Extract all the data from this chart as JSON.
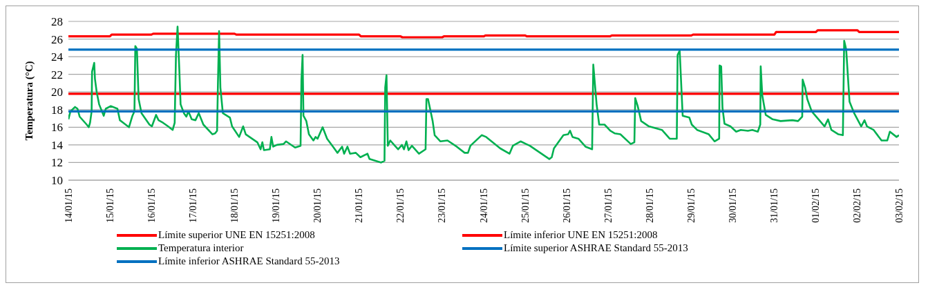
{
  "chart_data": {
    "type": "line",
    "ylabel": "Temperatura (°C)",
    "ylim": [
      10,
      28
    ],
    "yticks": [
      10,
      12,
      14,
      16,
      18,
      20,
      22,
      24,
      26,
      28
    ],
    "xlim": [
      "--01-14",
      "--02-03"
    ],
    "xticks": [
      {
        "value": "--01-14",
        "label": "14/01/15"
      },
      {
        "value": "--01-15",
        "label": "15/01/15"
      },
      {
        "value": "--01-16",
        "label": "16/01/15"
      },
      {
        "value": "--01-17",
        "label": "17/01/15"
      },
      {
        "value": "--01-18",
        "label": "18/01/15"
      },
      {
        "value": "--01-19",
        "label": "19/01/15"
      },
      {
        "value": "--01-20",
        "label": "20/01/15"
      },
      {
        "value": "--01-21",
        "label": "21/01/15"
      },
      {
        "value": "--01-22",
        "label": "22/01/15"
      },
      {
        "value": "--01-23",
        "label": "23/01/15"
      },
      {
        "value": "--01-24",
        "label": "24/01/15"
      },
      {
        "value": "--01-25",
        "label": "25/01/15"
      },
      {
        "value": "--01-26",
        "label": "26/01/15"
      },
      {
        "value": "--01-27",
        "label": "27/01/15"
      },
      {
        "value": "--01-28",
        "label": "28/01/15"
      },
      {
        "value": "--01-29",
        "label": "29/01/15"
      },
      {
        "value": "--01-30",
        "label": "30/01/15"
      },
      {
        "value": "--01-31",
        "label": "31/01/15"
      },
      {
        "value": "--02-01",
        "label": "01/02/15"
      },
      {
        "value": "--02-02",
        "label": "02/02/15"
      },
      {
        "value": "--02-03",
        "label": "03/02/15"
      }
    ],
    "grid": "y",
    "legend": "bottom",
    "marker": "none",
    "line_style": "solid",
    "series": [
      {
        "name": "Límite superior UNE EN 15251:2008",
        "color": "#ff0000",
        "x": [
          "--01-14",
          "--01-15T00:00",
          "--01-15T01:00",
          "--01-16T00:00",
          "--01-16T01:00",
          "--01-18T00:00",
          "--01-18T01:00",
          "--01-21T00:00",
          "--01-21T01:00",
          "--01-22T00:00",
          "--01-22T01:00",
          "--01-23T00:00",
          "--01-23T01:00",
          "--01-24T00:00",
          "--01-24T01:00",
          "--01-25T00:00",
          "--01-25T01:00",
          "--01-27T01:00",
          "--01-27T02:00",
          "--01-29T00:00",
          "--01-29T01:00",
          "--01-31T00:00",
          "--01-31T01:00",
          "--02-01T00:00",
          "--02-01T01:00",
          "--02-02T00:00",
          "--02-02T01:00",
          "--02-03T00:00"
        ],
        "values": [
          26.3,
          26.3,
          26.5,
          26.5,
          26.6,
          26.6,
          26.5,
          26.5,
          26.3,
          26.3,
          26.2,
          26.2,
          26.3,
          26.3,
          26.4,
          26.4,
          26.3,
          26.3,
          26.4,
          26.4,
          26.5,
          26.5,
          26.8,
          26.8,
          27.0,
          27.0,
          26.8,
          26.8
        ]
      },
      {
        "name": "Límite inferior UNE EN 15251:2008",
        "color": "#ff0000",
        "x": [
          "--01-14",
          "--02-03"
        ],
        "values": [
          19.8,
          19.8
        ]
      },
      {
        "name": "Temperatura interior",
        "color": "#00b050",
        "x": [
          "--01-14T00:00",
          "--01-14T01:10",
          "--01-14T03:50",
          "--01-14T05:15",
          "--01-14T06:30",
          "--01-14T10:35",
          "--01-14T11:45",
          "--01-14T12:30",
          "--01-14T13:25",
          "--01-14T13:40",
          "--01-14T14:55",
          "--01-14T15:20",
          "--01-14T16:20",
          "--01-14T17:45",
          "--01-14T20:25",
          "--01-14T21:35",
          "--01-15T00:30",
          "--01-15T04:20",
          "--01-15T05:45",
          "--01-15T08:25",
          "--01-15T11:00",
          "--01-15T13:00",
          "--01-15T14:10",
          "--01-15T14:40",
          "--01-15T15:35",
          "--01-15T16:35",
          "--01-15T18:15",
          "--01-15T22:50",
          "--01-16T00:15",
          "--01-16T02:40",
          "--01-16T04:05",
          "--01-16T06:45",
          "--01-16T09:35",
          "--01-16T12:15",
          "--01-16T13:25",
          "--01-16T14:10",
          "--01-16T15:05",
          "--01-16T16:05",
          "--01-16T16:50",
          "--01-16T18:45",
          "--01-16T20:10",
          "--01-16T21:20",
          "--01-16T23:15",
          "--01-17T01:25",
          "--01-17T03:20",
          "--01-17T06:00",
          "--01-17T11:15",
          "--01-17T12:45",
          "--01-17T13:55",
          "--01-17T14:25",
          "--01-17T15:05",
          "--01-17T15:50",
          "--01-17T17:15",
          "--01-17T21:20",
          "--01-17T22:35",
          "--01-18T02:40",
          "--01-18T05:00",
          "--01-18T06:30",
          "--01-18T13:10",
          "--01-18T15:05",
          "--01-18T16:05",
          "--01-18T17:00",
          "--01-18T20:25",
          "--01-18T21:20",
          "--01-18T22:20",
          "--01-19T00:30",
          "--01-19T04:20",
          "--01-19T05:45",
          "--01-19T11:00",
          "--01-19T14:10",
          "--01-19T14:40",
          "--01-19T15:20",
          "--01-19T15:50",
          "--01-19T17:30",
          "--01-19T19:00",
          "--01-19T21:35",
          "--01-19T22:50",
          "--01-20T00:00",
          "--01-20T02:55",
          "--01-20T05:30",
          "--01-20T08:55",
          "--01-20T11:30",
          "--01-20T14:10",
          "--01-20T15:20",
          "--01-20T17:15",
          "--01-20T18:45",
          "--01-20T22:05",
          "--01-21T00:45",
          "--01-21T04:50",
          "--01-21T06:00",
          "--01-21T12:45",
          "--01-21T14:40",
          "--01-21T15:05",
          "--01-21T15:50",
          "--01-21T16:35",
          "--01-21T18:00",
          "--01-21T20:40",
          "--01-21T22:35",
          "--01-22T00:45",
          "--01-22T01:55",
          "--01-22T03:20",
          "--01-22T04:35",
          "--01-22T06:30",
          "--01-22T10:35",
          "--01-22T14:25",
          "--01-22T14:55",
          "--01-22T15:50",
          "--01-22T18:30",
          "--01-22T19:40",
          "--01-22T23:00",
          "--01-23T03:05",
          "--01-23T08:25",
          "--01-23T13:00",
          "--01-23T14:55",
          "--01-23T16:20",
          "--01-23T22:50",
          "--01-24T01:25",
          "--01-24T09:35",
          "--01-24T14:55",
          "--01-24T16:50",
          "--01-24T21:20",
          "--01-25T02:40",
          "--01-25T13:55",
          "--01-25T15:20",
          "--01-25T16:35",
          "--01-25T22:05",
          "--01-26T00:45",
          "--01-26T01:55",
          "--01-26T03:20",
          "--01-26T06:45",
          "--01-26T10:50",
          "--01-26T14:40",
          "--01-26T15:20",
          "--01-26T17:15",
          "--01-26T18:45",
          "--01-26T21:50",
          "--01-27T01:10",
          "--01-27T03:50",
          "--01-27T07:00",
          "--01-27T13:00",
          "--01-27T15:05",
          "--01-27T15:35",
          "--01-27T17:00",
          "--01-27T19:00",
          "--01-27T23:30",
          "--01-28T07:00",
          "--01-28T11:30",
          "--01-28T15:35",
          "--01-28T16:05",
          "--01-28T17:15",
          "--01-28T19:00",
          "--01-28T22:50",
          "--01-29T00:15",
          "--01-29T03:20",
          "--01-29T10:05",
          "--01-29T13:25",
          "--01-29T16:05",
          "--01-29T16:20",
          "--01-29T17:15",
          "--01-29T18:00",
          "--01-29T19:10",
          "--01-29T22:35",
          "--01-30T01:55",
          "--01-30T04:35",
          "--01-30T08:40",
          "--01-30T11:15",
          "--01-30T14:25",
          "--01-30T15:50",
          "--01-30T16:05",
          "--01-30T17:00",
          "--01-30T19:00",
          "--01-30T23:00",
          "--01-31T03:35",
          "--01-31T10:20",
          "--01-31T13:40",
          "--01-31T16:05",
          "--01-31T16:20",
          "--01-31T17:45",
          "--01-31T19:00",
          "--01-31T21:35",
          "--02-01T05:00",
          "--02-01T07:00",
          "--02-01T08:55",
          "--02-01T13:00",
          "--02-01T15:35",
          "--02-01T16:20",
          "--02-01T17:30",
          "--02-01T19:25",
          "--02-01T22:05",
          "--02-02T02:10",
          "--02-02T04:05",
          "--02-02T05:30",
          "--02-02T09:20",
          "--02-02T13:55",
          "--02-02T17:15",
          "--02-02T18:45",
          "--02-02T22:35",
          "--02-03T00:00"
        ],
        "values": [
          16.9,
          17.8,
          18.3,
          18.1,
          17.2,
          16.3,
          16.0,
          16.5,
          17.8,
          22.3,
          23.3,
          21.5,
          20.0,
          18.6,
          17.3,
          18.1,
          18.4,
          18.1,
          16.8,
          16.4,
          16.0,
          17.3,
          17.8,
          25.2,
          24.9,
          19.2,
          17.6,
          16.3,
          16.1,
          17.4,
          16.8,
          16.5,
          16.1,
          15.7,
          16.5,
          24.2,
          27.4,
          22.6,
          18.6,
          17.6,
          17.2,
          17.8,
          16.9,
          16.8,
          17.6,
          16.3,
          15.2,
          15.3,
          15.6,
          21.0,
          26.9,
          20.5,
          17.6,
          17.1,
          16.1,
          14.9,
          16.1,
          15.2,
          14.3,
          13.5,
          14.3,
          13.4,
          13.5,
          14.9,
          13.8,
          14.0,
          14.1,
          14.4,
          13.7,
          13.9,
          21.3,
          24.2,
          17.3,
          16.7,
          15.2,
          14.5,
          14.9,
          14.7,
          16.0,
          14.7,
          13.8,
          13.1,
          13.8,
          13.0,
          13.8,
          13.0,
          13.1,
          12.6,
          13.0,
          12.4,
          12.0,
          12.2,
          20.5,
          21.9,
          13.9,
          14.5,
          13.9,
          13.5,
          14.0,
          13.5,
          14.4,
          13.4,
          13.9,
          13.0,
          13.5,
          19.2,
          19.2,
          16.7,
          15.1,
          14.4,
          14.5,
          13.8,
          13.1,
          13.1,
          13.9,
          15.1,
          14.9,
          13.6,
          13.0,
          13.9,
          14.4,
          13.9,
          12.4,
          12.6,
          13.6,
          15.1,
          15.2,
          15.6,
          14.9,
          14.7,
          13.8,
          13.5,
          23.1,
          18.6,
          16.3,
          16.3,
          15.6,
          15.3,
          15.2,
          14.1,
          14.3,
          19.3,
          18.4,
          16.7,
          16.1,
          15.7,
          14.7,
          14.7,
          24.2,
          24.7,
          17.3,
          17.1,
          16.3,
          15.7,
          15.2,
          14.4,
          14.7,
          23.0,
          22.9,
          18.2,
          16.4,
          16.1,
          15.5,
          15.7,
          15.6,
          15.7,
          15.5,
          16.3,
          22.9,
          19.6,
          17.4,
          16.9,
          16.7,
          16.8,
          16.7,
          17.2,
          21.4,
          20.5,
          19.2,
          17.8,
          16.1,
          16.9,
          15.7,
          15.2,
          15.1,
          25.8,
          24.8,
          18.9,
          17.6,
          16.1,
          16.8,
          16.1,
          15.7,
          14.5,
          14.5,
          15.5,
          14.9,
          15.1
        ]
      },
      {
        "name": "Límite superior ASHRAE Standard 55-2013",
        "color": "#0070c0",
        "x": [
          "--01-14",
          "--02-03"
        ],
        "values": [
          24.8,
          24.8
        ]
      },
      {
        "name": "Límite inferior ASHRAE Standard 55-2013",
        "color": "#0070c0",
        "x": [
          "--01-14",
          "--02-03"
        ],
        "values": [
          17.8,
          17.8
        ]
      }
    ]
  }
}
